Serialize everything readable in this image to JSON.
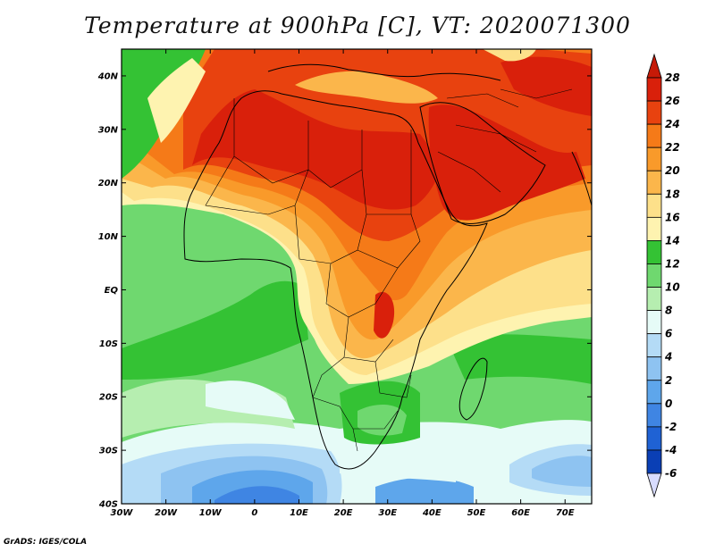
{
  "title": "Temperature at 900hPa [C], VT: 2020071300",
  "credit": "GrADS: IGES/COLA",
  "map": {
    "lon_range": [
      -30,
      76
    ],
    "lat_range": [
      -40,
      45
    ],
    "lon_ticks": [
      {
        "value": -30,
        "label": "30W"
      },
      {
        "value": -20,
        "label": "20W"
      },
      {
        "value": -10,
        "label": "10W"
      },
      {
        "value": 0,
        "label": "0"
      },
      {
        "value": 10,
        "label": "10E"
      },
      {
        "value": 20,
        "label": "20E"
      },
      {
        "value": 30,
        "label": "30E"
      },
      {
        "value": 40,
        "label": "40E"
      },
      {
        "value": 50,
        "label": "50E"
      },
      {
        "value": 60,
        "label": "60E"
      },
      {
        "value": 70,
        "label": "70E"
      }
    ],
    "lat_ticks": [
      {
        "value": 40,
        "label": "40N"
      },
      {
        "value": 30,
        "label": "30N"
      },
      {
        "value": 20,
        "label": "20N"
      },
      {
        "value": 10,
        "label": "10N"
      },
      {
        "value": 0,
        "label": "EQ"
      },
      {
        "value": -10,
        "label": "10S"
      },
      {
        "value": -20,
        "label": "20S"
      },
      {
        "value": -30,
        "label": "30S"
      },
      {
        "value": -40,
        "label": "40S"
      }
    ]
  },
  "colorbar": {
    "levels": [
      {
        "label": "28",
        "color": "#d9200b"
      },
      {
        "label": "26",
        "color": "#e8420f"
      },
      {
        "label": "24",
        "color": "#f57a18"
      },
      {
        "label": "22",
        "color": "#f99a2a"
      },
      {
        "label": "20",
        "color": "#fbb64b"
      },
      {
        "label": "18",
        "color": "#fde08a"
      },
      {
        "label": "16",
        "color": "#fef3b0"
      },
      {
        "label": "14",
        "color": "#34c234"
      },
      {
        "label": "12",
        "color": "#6fd86f"
      },
      {
        "label": "10",
        "color": "#b6eeb0"
      },
      {
        "label": "8",
        "color": "#e6fbf7"
      },
      {
        "label": "6",
        "color": "#b4dbf6"
      },
      {
        "label": "4",
        "color": "#8ec3f1"
      },
      {
        "label": "2",
        "color": "#5ea6eb"
      },
      {
        "label": "0",
        "color": "#3f85e3"
      },
      {
        "label": "-2",
        "color": "#1f62d4"
      },
      {
        "label": "-4",
        "color": "#0a3fb5"
      },
      {
        "label": "-6",
        "color": "#08208a"
      }
    ],
    "top_color": "#c61a07",
    "bottom_color": "#d8dcff"
  },
  "colors": {
    "t28": "#d9200b",
    "t26": "#e8420f",
    "t24": "#f57a18",
    "t22": "#f99a2a",
    "t20": "#fbb64b",
    "t18": "#fde08a",
    "t16": "#fef3b0",
    "t14": "#34c234",
    "t12": "#6fd86f",
    "t10": "#b6eeb0",
    "t8": "#e6fbf7",
    "t6": "#b4dbf6",
    "t4": "#8ec3f1",
    "t2": "#5ea6eb",
    "t0": "#3f85e3",
    "tm2": "#1f62d4",
    "tm4": "#0a3fb5"
  }
}
